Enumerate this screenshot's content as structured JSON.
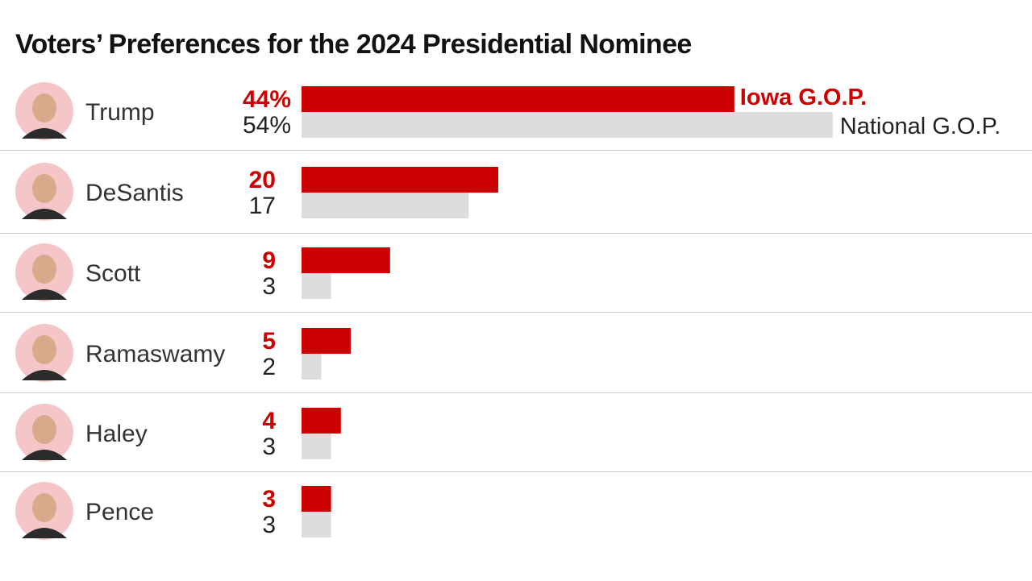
{
  "title": "Voters’ Preferences for the 2024 Presidential Nominee",
  "colors": {
    "iowa": "#cc0000",
    "national": "#dddddd",
    "avatar_bg": "#f5c6c8",
    "divider": "#cccccc"
  },
  "legend": {
    "iowa_label": "Iowa G.O.P.",
    "national_label": "National G.O.P."
  },
  "chart_data": {
    "type": "bar",
    "title": "Voters’ Preferences for the 2024 Presidential Nominee",
    "orientation": "horizontal",
    "unit": "%",
    "categories": [
      "Trump",
      "DeSantis",
      "Scott",
      "Ramaswamy",
      "Haley",
      "Pence"
    ],
    "series": [
      {
        "name": "Iowa G.O.P.",
        "values": [
          44,
          20,
          9,
          5,
          4,
          3
        ]
      },
      {
        "name": "National G.O.P.",
        "values": [
          54,
          17,
          3,
          2,
          3,
          3
        ]
      }
    ],
    "value_labels": {
      "Iowa G.O.P.": [
        "44%",
        "20",
        "9",
        "5",
        "4",
        "3"
      ],
      "National G.O.P.": [
        "54%",
        "17",
        "3",
        "2",
        "3",
        "3"
      ]
    },
    "xlim": [
      0,
      54
    ],
    "grid": false,
    "legend_position": "inline-right-of-first-bars"
  }
}
